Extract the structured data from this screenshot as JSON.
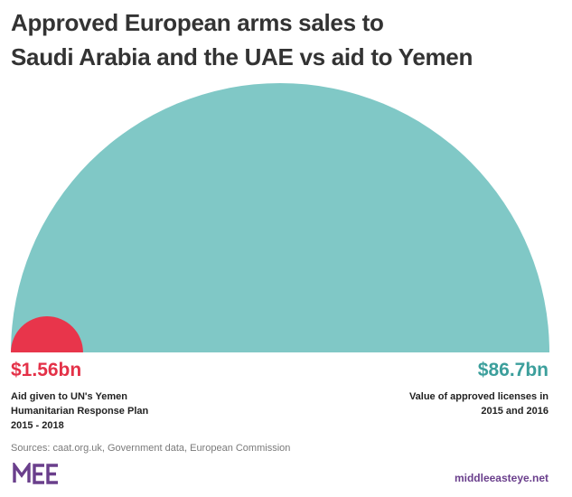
{
  "title": {
    "line1": "Approved European arms sales to",
    "line2": "Saudi Arabia and the UAE vs aid to Yemen"
  },
  "chart_data": {
    "type": "proportional-semicircle",
    "items": [
      {
        "value": 1.56,
        "label": "$1.56bn",
        "description": [
          "Aid given to UN's Yemen",
          "Humanitarian Response Plan",
          "2015 - 2018"
        ],
        "color": "#e8354b"
      },
      {
        "value": 86.7,
        "label": "$86.7bn",
        "description": [
          "Value of approved licenses in",
          "2015 and 2016"
        ],
        "color": "#80c8c6"
      }
    ],
    "unit": "USD billions"
  },
  "sources": "Sources: caat.org.uk, Government data, European Commission",
  "footer": {
    "logo": "MEE",
    "site": "middleeasteye.net"
  },
  "colors": {
    "aid": "#e8354b",
    "arms": "#80c8c6",
    "aid_text": "#e43148",
    "arms_text": "#3c9f9c",
    "brand": "#6a3f8c"
  }
}
